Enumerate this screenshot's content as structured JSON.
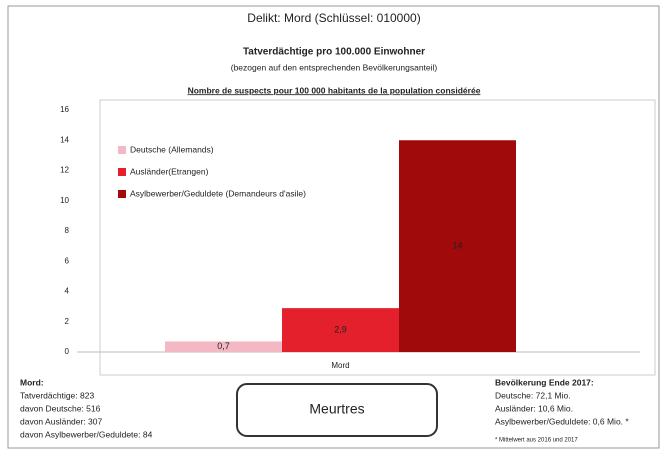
{
  "chart_data": {
    "type": "bar",
    "header": "Delikt: Mord (Schlüssel: 010000)",
    "title": "Tatverdächtige pro 100.000 Einwohner",
    "subtitle": "(bezogen auf den entsprechenden Bevölkerungsanteil)",
    "subtitle_fr": "Nombre de suspects pour 100 000 habitants de la population considérée",
    "categories": [
      "Mord"
    ],
    "series": [
      {
        "name": "Deutsche (Allemands)",
        "color": "#f4b8c4",
        "values": [
          0.7
        ],
        "value_labels": [
          "0,7"
        ]
      },
      {
        "name": "Ausländer(Etrangen)",
        "color": "#e3202b",
        "values": [
          2.9
        ],
        "value_labels": [
          "2,9"
        ]
      },
      {
        "name": "Asylbewerber/Geduldete (Demandeurs d'asile)",
        "color": "#a10a0a",
        "values": [
          14
        ],
        "value_labels": [
          "14"
        ]
      }
    ],
    "ylim": [
      0,
      16
    ],
    "yticks": [
      0,
      2,
      4,
      6,
      8,
      10,
      12,
      14,
      16
    ],
    "grid": false,
    "legend": "upper left"
  },
  "left_notes": {
    "title": "Mord:",
    "lines": [
      "Tatverdächtige: 823",
      "davon Deutsche: 516",
      "davon Ausländer: 307",
      "davon Asylbewerber/Geduldete: 84"
    ]
  },
  "center_label": "Meurtres",
  "right_notes": {
    "title": "Bevölkerung Ende 2017:",
    "lines": [
      "Deutsche: 72,1 Mio.",
      "Ausländer: 10,6 Mio.",
      "Asylbewerber/Geduldete: 0,6 Mio. *"
    ],
    "footnote": "* Mittelwert aus 2016 und 2017"
  }
}
